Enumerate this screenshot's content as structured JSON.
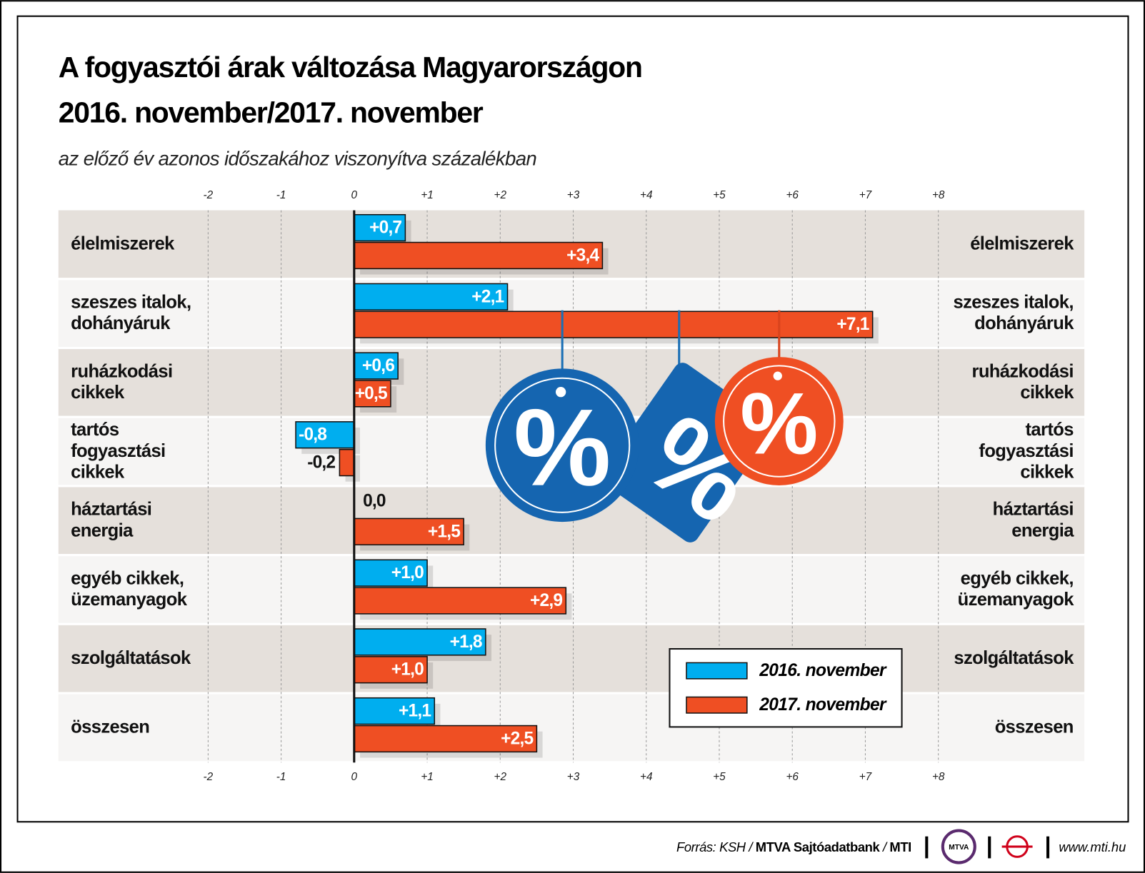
{
  "chart_data": {
    "type": "bar",
    "orientation": "horizontal",
    "title": [
      "A fogyasztói árak változása Magyarországon",
      "2016. november/2017. november"
    ],
    "subtitle": "az előző év azonos időszakához viszonyítva százalékban",
    "categories": [
      [
        "élelmiszerek"
      ],
      [
        "szeszes italok,",
        "dohányáruk"
      ],
      [
        "ruházkodási",
        "cikkek"
      ],
      [
        "tartós",
        "fogyasztási",
        "cikkek"
      ],
      [
        "háztartási",
        "energia"
      ],
      [
        "egyéb cikkek,",
        "üzemanyagok"
      ],
      [
        "szolgáltatások"
      ],
      [
        "összesen"
      ]
    ],
    "series": [
      {
        "name": "2016. november",
        "color": "#00aeef",
        "values": [
          0.7,
          2.1,
          0.6,
          -0.8,
          0.0,
          1.0,
          1.8,
          1.1
        ],
        "value_labels": [
          "+0,7",
          "+2,1",
          "+0,6",
          "-0,8",
          "0,0",
          "+1,0",
          "+1,8",
          "+1,1"
        ]
      },
      {
        "name": "2017. november",
        "color": "#ef4f23",
        "values": [
          3.4,
          7.1,
          0.5,
          -0.2,
          1.5,
          2.9,
          1.0,
          2.5
        ],
        "value_labels": [
          "+3,4",
          "+7,1",
          "+0,5",
          "-0,2",
          "+1,5",
          "+2,9",
          "+1,0",
          "+2,5"
        ]
      }
    ],
    "xlim": [
      -2,
      8
    ],
    "xticks": [
      -2,
      -1,
      0,
      {
        "value": 1,
        "label": "+1"
      },
      {
        "value": 2,
        "label": "+2"
      },
      {
        "value": 3,
        "label": "+3"
      },
      {
        "value": 4,
        "label": "+4"
      },
      {
        "value": 5,
        "label": "+5"
      },
      {
        "value": 6,
        "label": "+6"
      },
      {
        "value": 7,
        "label": "+7"
      },
      {
        "value": 8,
        "label": "+8"
      }
    ],
    "grid": true,
    "legend": "lower right"
  },
  "footer": {
    "source_label": "Forrás: KSH / ",
    "source_org": "MTVA Sajtóadatbank",
    "source_sep": " / ",
    "source_agency": "MTI",
    "logo_text": "MTVA",
    "url": "www.mti.hu"
  }
}
